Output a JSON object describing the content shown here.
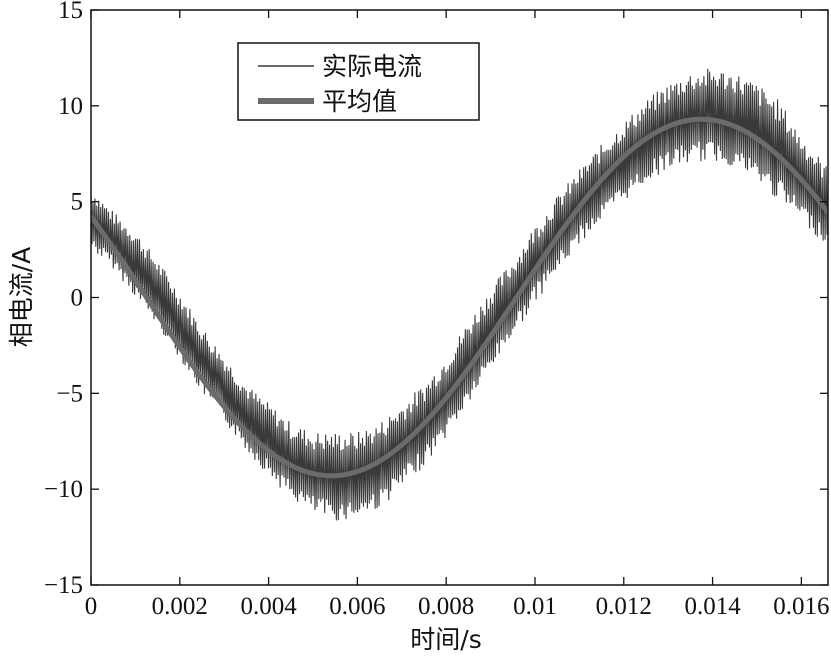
{
  "chart_data": {
    "type": "line",
    "xlabel": "时间/s",
    "ylabel": "相电流/A",
    "xlim": [
      0,
      0.0166
    ],
    "ylim": [
      -15,
      15
    ],
    "x_ticks": [
      "0",
      "0.002",
      "0.004",
      "0.006",
      "0.008",
      "0.01",
      "0.012",
      "0.014",
      "0.016"
    ],
    "x_tick_values": [
      0,
      0.002,
      0.004,
      0.006,
      0.008,
      0.01,
      0.012,
      0.014,
      0.016
    ],
    "y_ticks": [
      "15",
      "10",
      "5",
      "0",
      "−5",
      "−10",
      "−15"
    ],
    "y_tick_values": [
      15,
      10,
      5,
      0,
      -5,
      -10,
      -15
    ],
    "grid": false,
    "legend_position": "top-left",
    "colors": {
      "actual": "#3a3a3a",
      "average": "#6b6b6b"
    },
    "series": [
      {
        "name": "实际电流",
        "style": "thin",
        "x": [
          0,
          0.0005,
          0.001,
          0.0015,
          0.002,
          0.0025,
          0.003,
          0.0035,
          0.004,
          0.0045,
          0.005,
          0.0055,
          0.006,
          0.0065,
          0.007,
          0.0075,
          0.008,
          0.0085,
          0.009,
          0.0095,
          0.01,
          0.0105,
          0.011,
          0.0115,
          0.012,
          0.0125,
          0.013,
          0.0135,
          0.014,
          0.0145,
          0.015,
          0.0155,
          0.016,
          0.0166
        ],
        "upper": [
          5.8,
          4.5,
          3.5,
          2.0,
          0.3,
          -1.5,
          -3.0,
          -4.5,
          -5.5,
          -6.5,
          -7.0,
          -7.0,
          -7.0,
          -6.5,
          -5.5,
          -4.5,
          -3.0,
          -1.2,
          0.5,
          2.0,
          3.8,
          5.3,
          6.7,
          8.0,
          9.2,
          10.3,
          11.2,
          11.8,
          12.0,
          11.8,
          11.2,
          10.3,
          8.5,
          6.8
        ],
        "lower": [
          2.5,
          1.5,
          0.0,
          -1.5,
          -3.2,
          -5.0,
          -6.5,
          -8.0,
          -9.3,
          -10.5,
          -11.3,
          -11.7,
          -11.5,
          -11.0,
          -10.0,
          -8.8,
          -7.3,
          -5.6,
          -3.8,
          -2.0,
          -0.3,
          1.3,
          2.8,
          4.0,
          5.0,
          6.0,
          6.7,
          7.0,
          7.1,
          6.8,
          6.0,
          5.0,
          4.0,
          2.6
        ]
      },
      {
        "name": "平均值",
        "style": "thick",
        "amplitude": 9.3,
        "frequency_hz": 60,
        "phase_deg": 153
      }
    ]
  }
}
